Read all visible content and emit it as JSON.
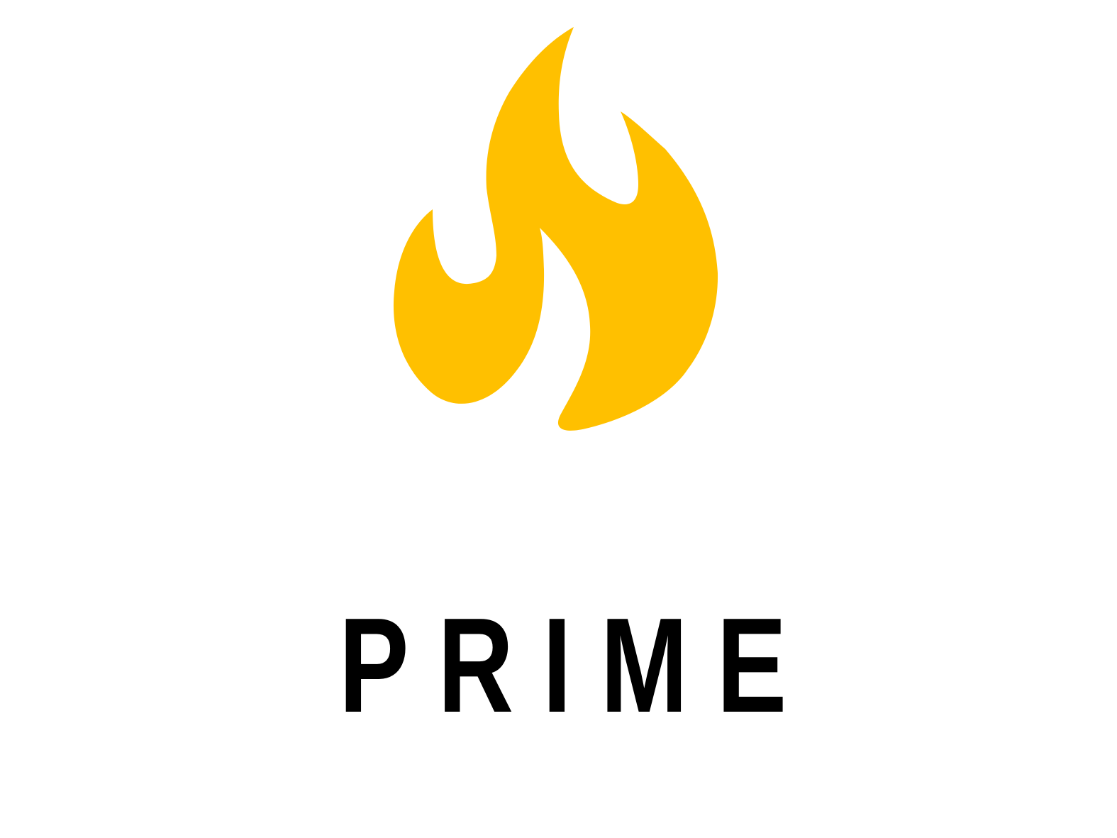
{
  "logo": {
    "icon": "flame-icon",
    "icon_color": "#FFC000",
    "wordmark": "PRIME",
    "wordmark_color": "#000000"
  },
  "background_color": "#FFFFFF"
}
